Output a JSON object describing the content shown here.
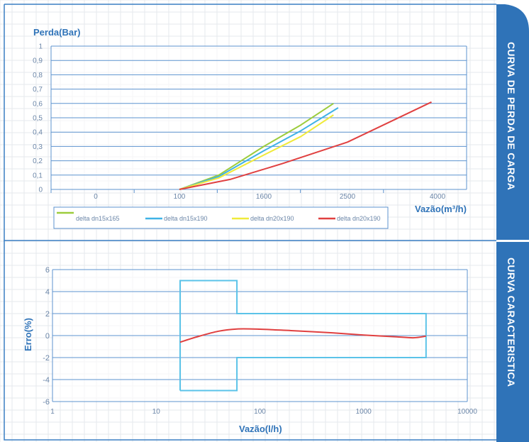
{
  "colors": {
    "accent": "#2f73b8",
    "grid_major": "#5d93cf",
    "grid_minor": "#e6e8ec",
    "frame": "#3a7fc4",
    "tick_text": "#6b86a8",
    "limit_box": "#5bc3e8"
  },
  "side_labels": {
    "top": "CURVA DE PERDA DE CARGA",
    "bottom": "CURVA CARACTERISTICA"
  },
  "chart_data": [
    {
      "type": "line",
      "ylabel": "Perda(Bar)",
      "xlabel": "Vazão(m³/h)",
      "x_ticks": [
        "0",
        "100",
        "1600",
        "2500",
        "4000"
      ],
      "y_ticks": [
        "1",
        "0,9",
        "0,8",
        "0,7",
        "0,6",
        "0,5",
        "0,4",
        "0,3",
        "0,2",
        "0,1",
        "0"
      ],
      "ylim": [
        0,
        1
      ],
      "grid": true,
      "legend_position": "bottom",
      "series": [
        {
          "name": "delta dn15x165",
          "color": "#9ccc3c",
          "x": [
            100,
            800,
            1600,
            2000,
            2350
          ],
          "y": [
            0,
            0.1,
            0.3,
            0.45,
            0.6
          ]
        },
        {
          "name": "delta dn15x190",
          "color": "#3fb2e6",
          "x": [
            100,
            800,
            1600,
            2000,
            2400
          ],
          "y": [
            0,
            0.09,
            0.27,
            0.41,
            0.57
          ]
        },
        {
          "name": "delta dn20x190",
          "color": "#f0ea3a",
          "x": [
            100,
            800,
            1600,
            2000,
            2350
          ],
          "y": [
            0,
            0.08,
            0.24,
            0.37,
            0.52
          ]
        },
        {
          "name": "delta dn20x190",
          "color": "#e04040",
          "x": [
            100,
            1000,
            1800,
            2500,
            3900
          ],
          "y": [
            0,
            0.07,
            0.18,
            0.33,
            0.61
          ]
        }
      ]
    },
    {
      "type": "line",
      "ylabel": "Erro(%)",
      "xlabel": "Vazão(l/h)",
      "x_ticks": [
        "1",
        "10",
        "100",
        "1000",
        "10000"
      ],
      "y_ticks": [
        "6",
        "4",
        "2",
        "0",
        "-2",
        "-4",
        "-6"
      ],
      "xscale": "log",
      "xlim": [
        1,
        10000
      ],
      "ylim": [
        -6,
        6
      ],
      "grid": true,
      "limit_envelope": {
        "color": "#5bc3e8",
        "x": [
          17,
          17,
          60,
          60,
          4000,
          4000,
          60,
          60,
          17
        ],
        "y": [
          -5,
          5,
          5,
          2,
          2,
          -2,
          -2,
          -5,
          -5
        ]
      },
      "series": [
        {
          "color": "#e04040",
          "x": [
            17,
            25,
            40,
            60,
            100,
            200,
            500,
            1000,
            2000,
            3000,
            4000
          ],
          "y": [
            -0.6,
            -0.1,
            0.4,
            0.6,
            0.58,
            0.45,
            0.25,
            0.05,
            -0.1,
            -0.2,
            -0.05
          ]
        }
      ]
    }
  ]
}
